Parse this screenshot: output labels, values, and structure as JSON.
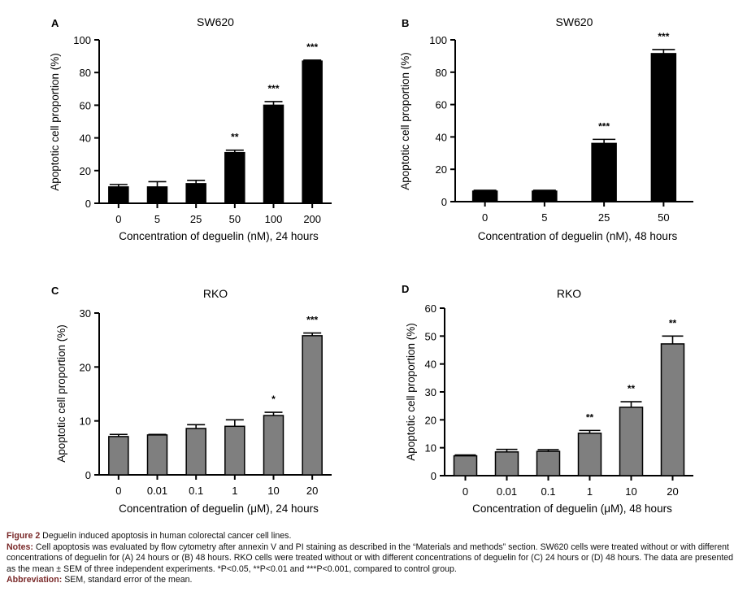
{
  "chart_data": [
    {
      "panel": "A",
      "type": "bar",
      "title": "SW620",
      "categories": [
        "0",
        "5",
        "25",
        "50",
        "100",
        "200"
      ],
      "values": [
        10,
        10,
        12,
        31,
        60,
        87
      ],
      "errors": [
        1.5,
        3.2,
        2.0,
        1.5,
        2.2,
        0.6
      ],
      "significance": [
        "",
        "",
        "",
        "**",
        "***",
        "***"
      ],
      "ylim": [
        0,
        100
      ],
      "yticks": [
        0,
        20,
        40,
        60,
        80,
        100
      ],
      "xlabel": "Concentration of deguelin (nM), 24 hours",
      "ylabel": "Apoptotic cell proportion (%)",
      "bar_color": "#000000"
    },
    {
      "panel": "B",
      "type": "bar",
      "title": "SW620",
      "categories": [
        "0",
        "5",
        "25",
        "50"
      ],
      "values": [
        6.5,
        6.5,
        36,
        91.5
      ],
      "errors": [
        0.5,
        0.5,
        2.5,
        2.5
      ],
      "significance": [
        "",
        "",
        "***",
        "***"
      ],
      "ylim": [
        0,
        100
      ],
      "yticks": [
        0,
        20,
        40,
        60,
        80,
        100
      ],
      "xlabel": "Concentration of deguelin (nM), 48 hours",
      "ylabel": "Apoptotic cell proportion (%)",
      "bar_color": "#000000"
    },
    {
      "panel": "C",
      "type": "bar",
      "title": "RKO",
      "categories": [
        "0",
        "0.01",
        "0.1",
        "1",
        "10",
        "20"
      ],
      "values": [
        7.1,
        7.4,
        8.6,
        9.0,
        11.0,
        25.8
      ],
      "errors": [
        0.4,
        0.1,
        0.7,
        1.2,
        0.6,
        0.5
      ],
      "significance": [
        "",
        "",
        "",
        "",
        "*",
        "***"
      ],
      "ylim": [
        0,
        30
      ],
      "yticks": [
        0,
        10,
        20,
        30
      ],
      "xlabel": "Concentration of deguelin (μM), 24 hours",
      "ylabel": "Apoptotic cell proportion (%)",
      "bar_color": "#7f7f7f"
    },
    {
      "panel": "D",
      "type": "bar",
      "title": "RKO",
      "categories": [
        "0",
        "0.01",
        "0.1",
        "1",
        "10",
        "20"
      ],
      "values": [
        7.1,
        8.5,
        8.7,
        15.2,
        24.5,
        47.2
      ],
      "errors": [
        0.3,
        0.9,
        0.6,
        1.0,
        2.0,
        2.8
      ],
      "significance": [
        "",
        "",
        "",
        "**",
        "**",
        "**"
      ],
      "ylim": [
        0,
        60
      ],
      "yticks": [
        0,
        10,
        20,
        30,
        40,
        50,
        60
      ],
      "xlabel": "Concentration of deguelin (μM), 48 hours",
      "ylabel": "Apoptotic cell proportion (%)",
      "bar_color": "#7f7f7f"
    }
  ],
  "caption": {
    "figure_label": "Figure 2",
    "figure_title": "Deguelin induced apoptosis in human colorectal cancer cell lines.",
    "notes_label": "Notes:",
    "notes_text": "Cell apoptosis was evaluated by flow cytometry after annexin V and PI staining as described in the “Materials and methods” section. SW620 cells were treated without or with different concentrations of deguelin for (A) 24 hours or (B) 48 hours. RKO cells were treated without or with different concentrations of deguelin for (C) 24 hours or (D) 48 hours. The data are presented as the mean ± SEM of three independent experiments. *P<0.05, **P<0.01 and ***P<0.001, compared to control group.",
    "abbrev_label": "Abbreviation:",
    "abbrev_text": "SEM, standard error of the mean."
  }
}
